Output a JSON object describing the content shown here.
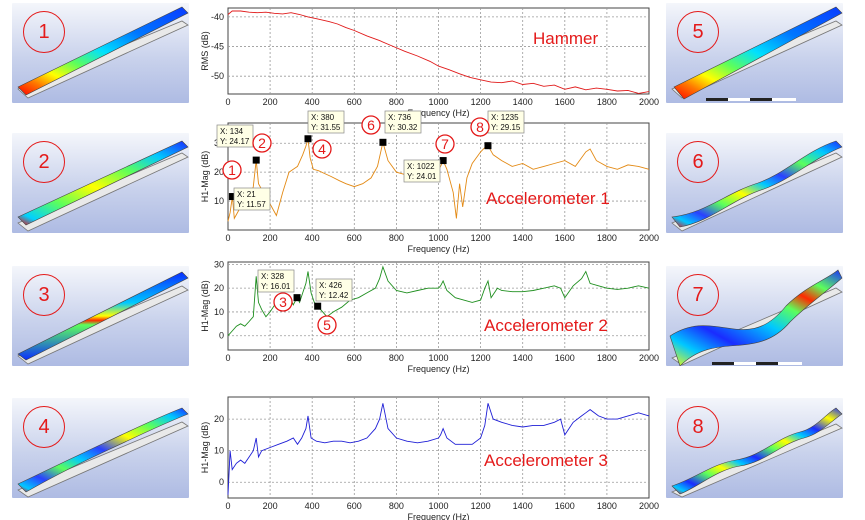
{
  "mode_thumbnails": {
    "left": [
      "1",
      "2",
      "3",
      "4"
    ],
    "right": [
      "5",
      "6",
      "7",
      "8"
    ]
  },
  "colors": {
    "hammer": "#e11b1b",
    "accel1": "#e38a15",
    "accel2": "#1f8f1f",
    "accel3": "#1f1fd6",
    "annotation_red": "#e41a1a",
    "grid": "#9a9a9a"
  },
  "chart_data": [
    {
      "id": "hammer",
      "type": "line",
      "title": "Hammer",
      "xlabel": "Frequency (Hz)",
      "ylabel": "RMS (dB)",
      "xlim": [
        0,
        2000
      ],
      "ylim": [
        -53,
        -38.5
      ],
      "xticks": [
        0,
        200,
        400,
        600,
        800,
        1000,
        1200,
        1400,
        1600,
        1800,
        2000
      ],
      "yticks": [
        -40,
        -45,
        -50
      ],
      "grid": true,
      "series": [
        {
          "x": [
            0,
            20,
            60,
            100,
            140,
            180,
            220,
            260,
            300,
            340,
            380,
            420,
            480,
            520,
            560,
            600,
            660,
            720,
            780,
            840,
            900,
            960,
            1000,
            1050,
            1100,
            1150,
            1200,
            1250,
            1300,
            1350,
            1400,
            1450,
            1500,
            1550,
            1600,
            1650,
            1700,
            1750,
            1800,
            1850,
            1900,
            1950,
            2000
          ],
          "y": [
            -39.6,
            -39.0,
            -39.0,
            -39.2,
            -39.3,
            -39.2,
            -39.4,
            -39.5,
            -39.3,
            -39.6,
            -40.0,
            -40.3,
            -40.8,
            -41.2,
            -41.8,
            -42.3,
            -43.2,
            -44.0,
            -44.9,
            -45.8,
            -46.6,
            -47.5,
            -48.3,
            -48.9,
            -49.6,
            -50.2,
            -50.6,
            -51.0,
            -51.1,
            -50.8,
            -51.4,
            -51.2,
            -51.7,
            -51.5,
            -52.2,
            -51.8,
            -52.3,
            -52.0,
            -52.2,
            -52.5,
            -52.4,
            -52.9,
            -52.6
          ]
        }
      ],
      "annotations": []
    },
    {
      "id": "accel1",
      "type": "line",
      "title": "Accelerometer 1",
      "xlabel": "Frequency (Hz)",
      "ylabel": "H1-Mag (dB)",
      "xlim": [
        0,
        2000
      ],
      "ylim": [
        0,
        37
      ],
      "xticks": [
        0,
        200,
        400,
        600,
        800,
        1000,
        1200,
        1400,
        1600,
        1800,
        2000
      ],
      "yticks": [
        10,
        20,
        30
      ],
      "grid": true,
      "series": [
        {
          "x": [
            0,
            10,
            21,
            30,
            45,
            60,
            80,
            100,
            120,
            134,
            145,
            160,
            180,
            200,
            230,
            260,
            290,
            310,
            330,
            355,
            370,
            380,
            390,
            405,
            430,
            460,
            490,
            530,
            560,
            600,
            640,
            680,
            710,
            736,
            760,
            800,
            850,
            900,
            950,
            990,
            1010,
            1022,
            1040,
            1070,
            1085,
            1100,
            1115,
            1135,
            1160,
            1200,
            1220,
            1235,
            1260,
            1300,
            1350,
            1400,
            1450,
            1500,
            1550,
            1600,
            1650,
            1700,
            1720,
            1750,
            1800,
            1850,
            1900,
            1950,
            2000
          ],
          "y": [
            3,
            6,
            11.57,
            4,
            6,
            8,
            8.5,
            10,
            15,
            24.17,
            16,
            14,
            11.5,
            9,
            5,
            13,
            20,
            21,
            22,
            26,
            29,
            31.55,
            25,
            21,
            20.5,
            19.5,
            18.5,
            17,
            16,
            15,
            16,
            18,
            22,
            30.32,
            24,
            20,
            19,
            18.5,
            19,
            20,
            22,
            24.01,
            21,
            13,
            4,
            16,
            8,
            18,
            23,
            27,
            28.5,
            29.15,
            26,
            24,
            22,
            23,
            21,
            22,
            23,
            24,
            22,
            27,
            28,
            24,
            22,
            21,
            22.5,
            22,
            21
          ]
        }
      ],
      "annotations": [
        {
          "label": "X: 21",
          "label2": "Y: 11.57",
          "x": 21,
          "y": 11.57,
          "mode": "1"
        },
        {
          "label": "X: 134",
          "label2": "Y: 24.17",
          "x": 134,
          "y": 24.17,
          "mode": "2"
        },
        {
          "label": "X: 380",
          "label2": "Y: 31.55",
          "x": 380,
          "y": 31.55,
          "mode": "4"
        },
        {
          "label": "X: 736",
          "label2": "Y: 30.32",
          "x": 736,
          "y": 30.32,
          "mode": "6"
        },
        {
          "label": "X: 1022",
          "label2": "Y: 24.01",
          "x": 1022,
          "y": 24.01,
          "mode": "7"
        },
        {
          "label": "X: 1235",
          "label2": "Y: 29.15",
          "x": 1235,
          "y": 29.15,
          "mode": "8"
        }
      ]
    },
    {
      "id": "accel2",
      "type": "line",
      "title": "Accelerometer 2",
      "xlabel": "Frequency (Hz)",
      "ylabel": "H1-Mag (dB)",
      "xlim": [
        0,
        2000
      ],
      "ylim": [
        -6,
        31
      ],
      "xticks": [
        0,
        200,
        400,
        600,
        800,
        1000,
        1200,
        1400,
        1600,
        1800,
        2000
      ],
      "yticks": [
        0,
        10,
        20,
        30
      ],
      "grid": true,
      "series": [
        {
          "x": [
            0,
            20,
            40,
            60,
            80,
            100,
            120,
            134,
            145,
            160,
            180,
            200,
            230,
            260,
            290,
            310,
            328,
            340,
            355,
            370,
            380,
            395,
            410,
            426,
            440,
            470,
            500,
            540,
            580,
            620,
            660,
            700,
            720,
            736,
            760,
            800,
            850,
            900,
            950,
            1000,
            1010,
            1022,
            1040,
            1080,
            1120,
            1160,
            1200,
            1220,
            1235,
            1250,
            1280,
            1300,
            1350,
            1400,
            1450,
            1500,
            1550,
            1580,
            1600,
            1640,
            1680,
            1700,
            1720,
            1760,
            1800,
            1850,
            1900,
            1950,
            2000
          ],
          "y": [
            0,
            2,
            4,
            5,
            4,
            6,
            8,
            25,
            14,
            11,
            8,
            10,
            14,
            15,
            17,
            13,
            16.01,
            14,
            18,
            22,
            27,
            18,
            14,
            12.42,
            11,
            8,
            10,
            12,
            15,
            16,
            18,
            20,
            24,
            29,
            23,
            19,
            18,
            19,
            20,
            20,
            21,
            23,
            19,
            16,
            15,
            14,
            15,
            20,
            23,
            16,
            20,
            19,
            18.5,
            18.5,
            19,
            20,
            21,
            20,
            16,
            21,
            24,
            27,
            22,
            21,
            20,
            19.5,
            20,
            21,
            20
          ]
        }
      ],
      "annotations": [
        {
          "label": "X: 328",
          "label2": "Y: 16.01",
          "x": 328,
          "y": 16.01,
          "mode": "3"
        },
        {
          "label": "X: 426",
          "label2": "Y: 12.42",
          "x": 426,
          "y": 12.42,
          "mode": "5"
        }
      ]
    },
    {
      "id": "accel3",
      "type": "line",
      "title": "Accelerometer 3",
      "xlabel": "Frequency (Hz)",
      "ylabel": "H1-Mag (dB)",
      "xlim": [
        0,
        2000
      ],
      "ylim": [
        -5,
        27
      ],
      "xticks": [
        0,
        200,
        400,
        600,
        800,
        1000,
        1200,
        1400,
        1600,
        1800,
        2000
      ],
      "yticks": [
        0,
        10,
        20
      ],
      "grid": true,
      "series": [
        {
          "x": [
            0,
            10,
            20,
            40,
            60,
            80,
            100,
            120,
            134,
            145,
            160,
            200,
            240,
            280,
            310,
            330,
            350,
            370,
            380,
            395,
            420,
            460,
            500,
            540,
            580,
            620,
            660,
            700,
            720,
            736,
            760,
            800,
            850,
            900,
            950,
            1000,
            1010,
            1022,
            1040,
            1080,
            1120,
            1160,
            1200,
            1220,
            1235,
            1260,
            1300,
            1350,
            1400,
            1450,
            1500,
            1550,
            1580,
            1600,
            1640,
            1680,
            1700,
            1720,
            1760,
            1800,
            1850,
            1900,
            1950,
            2000
          ],
          "y": [
            -4,
            10,
            4,
            6,
            7,
            6,
            8,
            10,
            14,
            8,
            10,
            11,
            12,
            13,
            14,
            12,
            14,
            17,
            21,
            14,
            13,
            12.5,
            13,
            13,
            12.5,
            13,
            14,
            17,
            20,
            25,
            17,
            14,
            13,
            12.5,
            13,
            14,
            15,
            17,
            14,
            12,
            12,
            12,
            14,
            18,
            25,
            20,
            19,
            18,
            17.5,
            18,
            18,
            19,
            20,
            15,
            19,
            21,
            22,
            23,
            21,
            20,
            20,
            21,
            22,
            21
          ]
        }
      ],
      "annotations": []
    }
  ]
}
